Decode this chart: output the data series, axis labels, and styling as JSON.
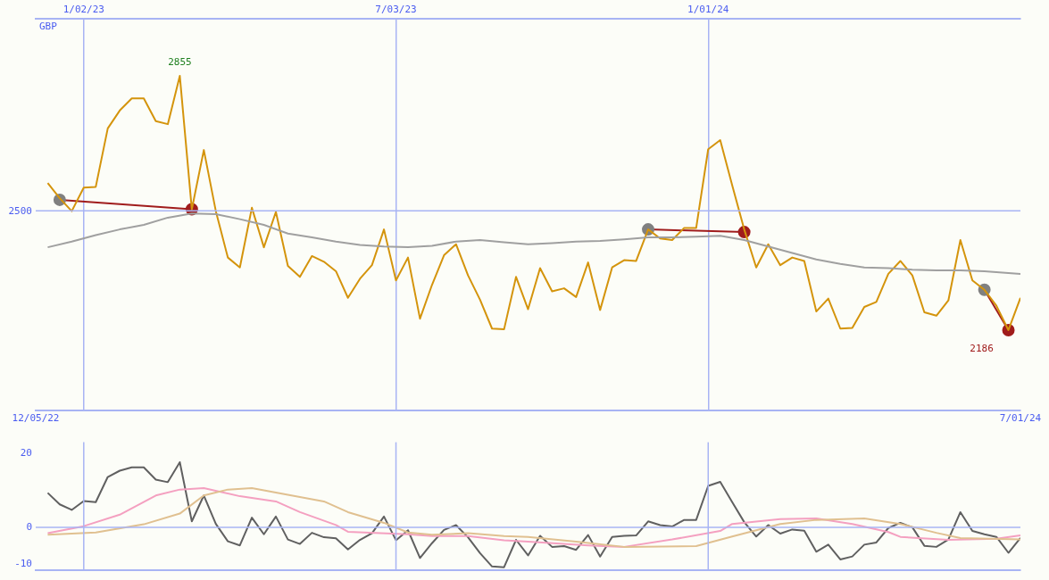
{
  "chart_data": [
    {
      "type": "line",
      "ylabel": "GBP",
      "marker": "none",
      "legend": false,
      "grid": true,
      "x": [
        "2022-12-12",
        "2022-12-19",
        "2022-12-26",
        "2023-01-02",
        "2023-01-09",
        "2023-01-16",
        "2023-01-23",
        "2023-01-30",
        "2023-02-06",
        "2023-02-13",
        "2023-02-20",
        "2023-02-27",
        "2023-03-06",
        "2023-03-13",
        "2023-03-20",
        "2023-03-27",
        "2023-04-03",
        "2023-04-10",
        "2023-04-17",
        "2023-04-24",
        "2023-05-01",
        "2023-05-08",
        "2023-05-15",
        "2023-05-22",
        "2023-05-29",
        "2023-06-05",
        "2023-06-12",
        "2023-06-19",
        "2023-06-26",
        "2023-07-03",
        "2023-07-10",
        "2023-07-17",
        "2023-07-24",
        "2023-07-31",
        "2023-08-07",
        "2023-08-14",
        "2023-08-21",
        "2023-08-28",
        "2023-09-04",
        "2023-09-11",
        "2023-09-18",
        "2023-09-25",
        "2023-10-02",
        "2023-10-09",
        "2023-10-16",
        "2023-10-23",
        "2023-10-30",
        "2023-11-06",
        "2023-11-13",
        "2023-11-20",
        "2023-11-27",
        "2023-12-04",
        "2023-12-11",
        "2023-12-18",
        "2023-12-25",
        "2024-01-01",
        "2024-01-08",
        "2024-01-15",
        "2024-01-22",
        "2024-01-29",
        "2024-02-05",
        "2024-02-12",
        "2024-02-19",
        "2024-02-26",
        "2024-03-04",
        "2024-03-11",
        "2024-03-18",
        "2024-03-25",
        "2024-04-01",
        "2024-04-08",
        "2024-04-15",
        "2024-04-22",
        "2024-04-29",
        "2024-05-06",
        "2024-05-13",
        "2024-05-20",
        "2024-05-27",
        "2024-06-03",
        "2024-06-10",
        "2024-06-17",
        "2024-06-24",
        "2024-07-01"
      ],
      "xlim": [
        "2022-12-05",
        "2024-07-01"
      ],
      "xticks": [
        {
          "value": "2022-12-05",
          "label": "12/05/22"
        },
        {
          "value": "2024-07-01",
          "label": "7/01/24"
        }
      ],
      "x2lim": [
        "2022-12-05",
        "2024-07-01"
      ],
      "x2ticks": [
        {
          "value": "2023-01-02",
          "label": "1/02/23"
        },
        {
          "value": "2023-07-03",
          "label": "7/03/23"
        },
        {
          "value": "2024-01-01",
          "label": "1/01/24"
        }
      ],
      "ylim": [
        1975,
        3005
      ],
      "ref_lines": [
        {
          "axis": "y",
          "value": 2500,
          "label": "2500"
        }
      ],
      "series": [
        {
          "color": "#a0a0a0",
          "x": [
            "2022-12-12",
            "2022-12-26",
            "2023-01-09",
            "2023-01-23",
            "2023-02-06",
            "2023-02-20",
            "2023-03-06",
            "2023-03-20",
            "2023-04-03",
            "2023-04-17",
            "2023-05-01",
            "2023-05-15",
            "2023-05-29",
            "2023-06-12",
            "2023-06-26",
            "2023-07-10",
            "2023-07-24",
            "2023-08-07",
            "2023-08-21",
            "2023-09-04",
            "2023-09-18",
            "2023-10-02",
            "2023-10-16",
            "2023-10-30",
            "2023-11-13",
            "2023-11-27",
            "2023-12-11",
            "2023-12-25",
            "2024-01-08",
            "2024-01-22",
            "2024-02-05",
            "2024-02-19",
            "2024-03-04",
            "2024-03-18",
            "2024-04-01",
            "2024-04-15",
            "2024-04-29",
            "2024-05-13",
            "2024-05-27",
            "2024-06-10",
            "2024-06-24",
            "2024-07-01"
          ],
          "values": [
            2404,
            2419,
            2436,
            2451,
            2463,
            2482,
            2493,
            2491,
            2478,
            2463,
            2440,
            2430,
            2419,
            2410,
            2406,
            2404,
            2408,
            2419,
            2423,
            2417,
            2412,
            2415,
            2419,
            2421,
            2425,
            2430,
            2430,
            2432,
            2434,
            2423,
            2406,
            2389,
            2372,
            2360,
            2351,
            2349,
            2345,
            2343,
            2343,
            2341,
            2336,
            2334
          ]
        },
        {
          "color": "#d4940c",
          "values": [
            2573,
            2533,
            2499,
            2561,
            2563,
            2717,
            2764,
            2796,
            2796,
            2736,
            2728,
            2855,
            2504,
            2660,
            2499,
            2377,
            2351,
            2508,
            2404,
            2497,
            2355,
            2326,
            2381,
            2366,
            2341,
            2271,
            2321,
            2357,
            2451,
            2317,
            2377,
            2216,
            2305,
            2383,
            2412,
            2330,
            2266,
            2190,
            2188,
            2326,
            2241,
            2349,
            2288,
            2296,
            2273,
            2364,
            2239,
            2351,
            2370,
            2368,
            2451,
            2427,
            2423,
            2455,
            2455,
            2662,
            2686,
            2567,
            2451,
            2351,
            2412,
            2357,
            2377,
            2368,
            2235,
            2269,
            2190,
            2192,
            2247,
            2260,
            2334,
            2368,
            2330,
            2233,
            2224,
            2264,
            2423,
            2317,
            2292,
            2250,
            2186,
            2271
          ],
          "value_labels": [
            null,
            null,
            null,
            null,
            null,
            null,
            null,
            null,
            null,
            null,
            null,
            "2855",
            null,
            null,
            null,
            null,
            null,
            null,
            null,
            null,
            null,
            null,
            null,
            null,
            null,
            null,
            null,
            null,
            null,
            null,
            null,
            null,
            null,
            null,
            null,
            null,
            null,
            null,
            null,
            null,
            null,
            null,
            null,
            null,
            null,
            null,
            null,
            null,
            null,
            null,
            null,
            null,
            null,
            null,
            null,
            null,
            null,
            null,
            null,
            null,
            null,
            null,
            null,
            null,
            null,
            null,
            null,
            null,
            null,
            null,
            null,
            null,
            null,
            null,
            null,
            null,
            null,
            null,
            null,
            null,
            "2186",
            null
          ]
        },
        {
          "color": "#a01c1c",
          "marker": "circle",
          "colors": [
            "#808080",
            "#a01c1c"
          ],
          "x": [
            "2022-12-19",
            "2023-03-06"
          ],
          "values": [
            2529,
            2504
          ]
        },
        {
          "color": "#a01c1c",
          "marker": "circle",
          "colors": [
            "#808080",
            "#a01c1c"
          ],
          "x": [
            "2023-11-27",
            "2024-01-22"
          ],
          "values": [
            2451,
            2444
          ]
        },
        {
          "color": "#a01c1c",
          "marker": "circle",
          "colors": [
            "#808080",
            "#a01c1c"
          ],
          "x": [
            "2024-06-10",
            "2024-06-24"
          ],
          "values": [
            2292,
            2186
          ]
        }
      ]
    },
    {
      "type": "line",
      "marker": "none",
      "legend": false,
      "tick_labels": "y",
      "x": [
        "2022-12-12",
        "2022-12-19",
        "2022-12-26",
        "2023-01-02",
        "2023-01-09",
        "2023-01-16",
        "2023-01-23",
        "2023-01-30",
        "2023-02-06",
        "2023-02-13",
        "2023-02-20",
        "2023-02-27",
        "2023-03-06",
        "2023-03-13",
        "2023-03-20",
        "2023-03-27",
        "2023-04-03",
        "2023-04-10",
        "2023-04-17",
        "2023-04-24",
        "2023-05-01",
        "2023-05-08",
        "2023-05-15",
        "2023-05-22",
        "2023-05-29",
        "2023-06-05",
        "2023-06-12",
        "2023-06-19",
        "2023-06-26",
        "2023-07-03",
        "2023-07-10",
        "2023-07-17",
        "2023-07-24",
        "2023-07-31",
        "2023-08-07",
        "2023-08-14",
        "2023-08-21",
        "2023-08-28",
        "2023-09-04",
        "2023-09-11",
        "2023-09-18",
        "2023-09-25",
        "2023-10-02",
        "2023-10-09",
        "2023-10-16",
        "2023-10-23",
        "2023-10-30",
        "2023-11-06",
        "2023-11-13",
        "2023-11-20",
        "2023-11-27",
        "2023-12-04",
        "2023-12-11",
        "2023-12-18",
        "2023-12-25",
        "2024-01-01",
        "2024-01-08",
        "2024-01-15",
        "2024-01-22",
        "2024-01-29",
        "2024-02-05",
        "2024-02-12",
        "2024-02-19",
        "2024-02-26",
        "2024-03-04",
        "2024-03-11",
        "2024-03-18",
        "2024-03-25",
        "2024-04-01",
        "2024-04-08",
        "2024-04-15",
        "2024-04-22",
        "2024-04-29",
        "2024-05-06",
        "2024-05-13",
        "2024-05-20",
        "2024-05-27",
        "2024-06-03",
        "2024-06-10",
        "2024-06-17",
        "2024-06-24",
        "2024-07-01"
      ],
      "xlim": [
        "2022-12-05",
        "2024-07-01"
      ],
      "ylim": [
        -11.7,
        23
      ],
      "yticks": [
        20,
        0,
        -10
      ],
      "ref_lines": [
        {
          "axis": "y",
          "value": 0
        },
        {
          "axis": "x",
          "value": "2023-01-02"
        },
        {
          "axis": "x",
          "value": "2023-07-03"
        },
        {
          "axis": "x",
          "value": "2024-01-01"
        }
      ],
      "series": [
        {
          "color": "#e0c090",
          "x": [
            "2022-12-12",
            "2023-01-09",
            "2023-02-06",
            "2023-02-27",
            "2023-03-13",
            "2023-03-27",
            "2023-04-10",
            "2023-05-01",
            "2023-05-22",
            "2023-06-05",
            "2023-06-26",
            "2023-07-10",
            "2023-07-24",
            "2023-08-14",
            "2023-09-04",
            "2023-09-18",
            "2023-10-16",
            "2023-11-13",
            "2023-12-25",
            "2024-01-15",
            "2024-02-12",
            "2024-03-04",
            "2024-04-01",
            "2024-04-22",
            "2024-05-13",
            "2024-05-27",
            "2024-07-01"
          ],
          "values": [
            -2.0,
            -1.4,
            0.8,
            3.7,
            8.6,
            10.2,
            10.6,
            8.8,
            7.0,
            4.1,
            1.2,
            -1.4,
            -2.0,
            -1.6,
            -2.4,
            -2.6,
            -3.9,
            -5.3,
            -5.1,
            -2.5,
            0.9,
            2.0,
            2.4,
            0.9,
            -1.5,
            -2.9,
            -3.3
          ]
        },
        {
          "color": "#f4a0c0",
          "x": [
            "2022-12-12",
            "2023-01-02",
            "2023-01-23",
            "2023-02-13",
            "2023-02-27",
            "2023-03-13",
            "2023-04-03",
            "2023-04-24",
            "2023-05-08",
            "2023-05-29",
            "2023-06-05",
            "2023-07-10",
            "2023-07-24",
            "2023-08-14",
            "2023-09-04",
            "2023-09-18",
            "2023-10-23",
            "2023-11-13",
            "2023-12-11",
            "2024-01-08",
            "2024-01-15",
            "2024-02-12",
            "2024-03-04",
            "2024-03-25",
            "2024-04-15",
            "2024-04-22",
            "2024-05-20",
            "2024-06-17",
            "2024-07-01"
          ],
          "values": [
            -1.6,
            0.3,
            3.4,
            8.6,
            10.2,
            10.6,
            8.4,
            7.0,
            4.1,
            0.6,
            -1.2,
            -1.9,
            -2.4,
            -2.4,
            -3.5,
            -3.9,
            -4.9,
            -5.3,
            -3.3,
            -1.0,
            0.9,
            2.2,
            2.4,
            0.9,
            -1.3,
            -2.6,
            -3.4,
            -3.1,
            -2.2
          ]
        },
        {
          "color": "#606060",
          "values": [
            9.3,
            6.2,
            4.7,
            7.1,
            6.8,
            13.6,
            15.3,
            16.2,
            16.2,
            12.9,
            12.2,
            17.6,
            1.6,
            8.6,
            0.9,
            -3.8,
            -4.9,
            2.6,
            -1.9,
            2.9,
            -3.3,
            -4.5,
            -1.5,
            -2.7,
            -3.0,
            -6.0,
            -3.4,
            -1.6,
            2.9,
            -3.5,
            -0.8,
            -8.3,
            -4.3,
            -0.7,
            0.6,
            -2.7,
            -7.0,
            -10.6,
            -10.8,
            -3.4,
            -7.6,
            -2.3,
            -5.3,
            -5.1,
            -6.1,
            -2.1,
            -7.9,
            -2.6,
            -2.3,
            -2.2,
            1.6,
            0.6,
            0.2,
            2.0,
            2.0,
            11.2,
            12.3,
            6.8,
            1.4,
            -2.5,
            0.6,
            -1.7,
            -0.6,
            -0.9,
            -6.6,
            -4.7,
            -8.7,
            -7.9,
            -4.7,
            -4.1,
            -0.2,
            1.2,
            0.0,
            -5.0,
            -5.3,
            -3.3,
            4.1,
            -1.0,
            -1.9,
            -2.6,
            -6.9,
            -2.9
          ]
        }
      ]
    }
  ]
}
